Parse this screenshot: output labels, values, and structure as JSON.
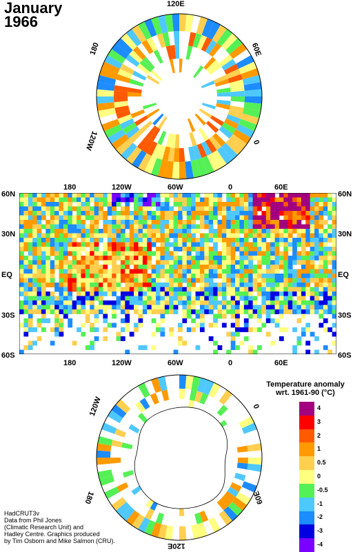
{
  "title": {
    "month": "January",
    "year": "1966"
  },
  "north_map": {
    "labels": {
      "top": "120E",
      "left": "180",
      "right": "60E",
      "lower_left": "120W",
      "lower_right": "0"
    }
  },
  "main_map": {
    "lon_labels": [
      "180",
      "120W",
      "60W",
      "0",
      "60E"
    ],
    "lat_labels": [
      "60N",
      "30N",
      "EQ",
      "30S",
      "60S"
    ]
  },
  "south_map": {
    "labels": {
      "top": "0",
      "left": "120W",
      "right": "0",
      "bottom": "120E",
      "lower_left": "180",
      "lower_right": "60E"
    }
  },
  "legend": {
    "title_line1": "Temperature anomaly",
    "title_line2": "wrt. 1961-90  (°C)",
    "levels": [
      {
        "label": "4",
        "color": "#a3007f"
      },
      {
        "label": "3",
        "color": "#ff0000"
      },
      {
        "label": "2",
        "color": "#ff5a00"
      },
      {
        "label": "1",
        "color": "#ff9a00"
      },
      {
        "label": "0.5",
        "color": "#ffcf4f"
      },
      {
        "label": "0",
        "color": "#ffff80"
      },
      {
        "label": "-0.5",
        "color": "#55f055"
      },
      {
        "label": "-1",
        "color": "#4fc8ff"
      },
      {
        "label": "-2",
        "color": "#1c8cff"
      },
      {
        "label": "-3",
        "color": "#0000e0"
      },
      {
        "label": "-4",
        "color": "#7a00ff"
      }
    ]
  },
  "credits": [
    "HadCRUT3v",
    "Data from Phil Jones",
    "(Climatic Research Unit) and",
    "Hadley Centre.  Graphics produced",
    "by Tim Osborn and Mike Salmon (CRU)."
  ]
}
